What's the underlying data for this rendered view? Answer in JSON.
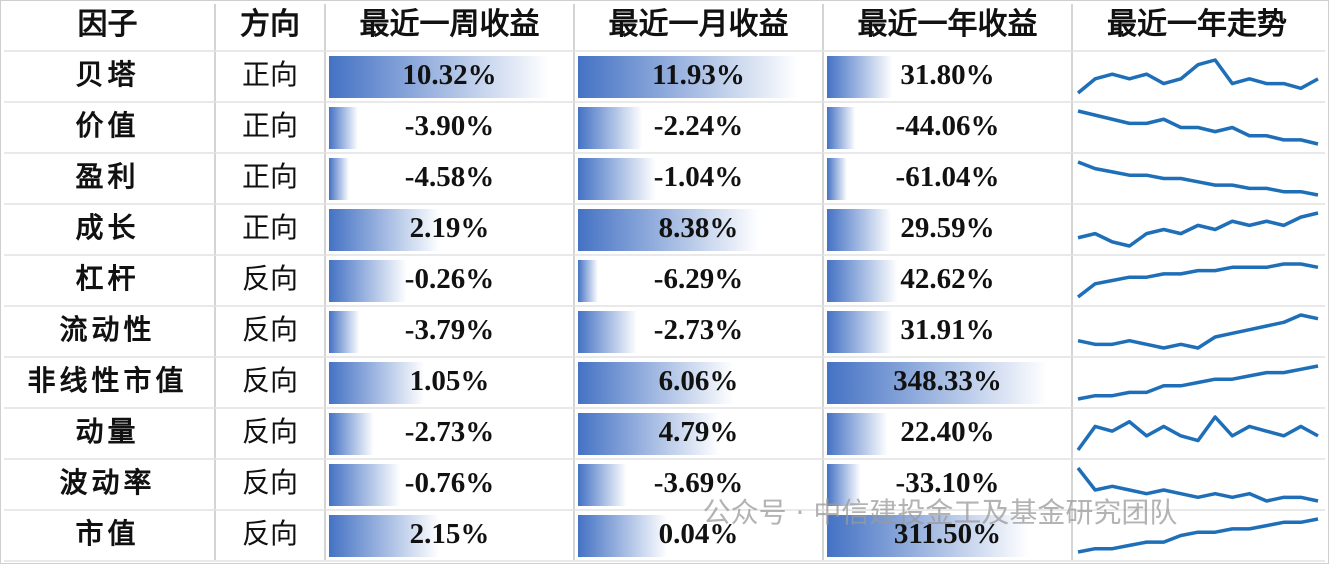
{
  "table": {
    "headers": [
      "因子",
      "方向",
      "最近一周收益",
      "最近一月收益",
      "最近一年收益",
      "最近一年走势"
    ],
    "rows": [
      {
        "factor": "贝塔",
        "direction": "正向",
        "week": {
          "value": 10.32,
          "label": "10.32%"
        },
        "month": {
          "value": 11.93,
          "label": "11.93%"
        },
        "year": {
          "value": 31.8,
          "label": "31.80%"
        },
        "trend": [
          3,
          6,
          7,
          6,
          7,
          5,
          6,
          9,
          10,
          5,
          6,
          5,
          5,
          4,
          6
        ]
      },
      {
        "factor": "价值",
        "direction": "正向",
        "week": {
          "value": -3.9,
          "label": "-3.90%"
        },
        "month": {
          "value": -2.24,
          "label": "-2.24%"
        },
        "year": {
          "value": -44.06,
          "label": "-44.06%"
        },
        "trend": [
          9,
          8,
          7,
          6,
          6,
          7,
          5,
          5,
          4,
          5,
          3,
          3,
          2,
          2,
          1
        ]
      },
      {
        "factor": "盈利",
        "direction": "正向",
        "week": {
          "value": -4.58,
          "label": "-4.58%"
        },
        "month": {
          "value": -1.04,
          "label": "-1.04%"
        },
        "year": {
          "value": -61.04,
          "label": "-61.04%"
        },
        "trend": [
          10,
          8,
          7,
          6,
          6,
          5,
          5,
          4,
          3,
          3,
          2,
          2,
          1,
          1,
          0
        ]
      },
      {
        "factor": "成长",
        "direction": "正向",
        "week": {
          "value": 2.19,
          "label": "2.19%"
        },
        "month": {
          "value": 8.38,
          "label": "8.38%"
        },
        "year": {
          "value": 29.59,
          "label": "29.59%"
        },
        "trend": [
          4,
          5,
          3,
          2,
          5,
          6,
          5,
          7,
          6,
          8,
          7,
          8,
          7,
          9,
          10
        ]
      },
      {
        "factor": "杠杆",
        "direction": "反向",
        "week": {
          "value": -0.26,
          "label": "-0.26%"
        },
        "month": {
          "value": -6.29,
          "label": "-6.29%"
        },
        "year": {
          "value": 42.62,
          "label": "42.62%"
        },
        "trend": [
          0,
          4,
          5,
          6,
          6,
          7,
          7,
          8,
          8,
          9,
          9,
          9,
          10,
          10,
          9
        ]
      },
      {
        "factor": "流动性",
        "direction": "反向",
        "week": {
          "value": -3.79,
          "label": "-3.79%"
        },
        "month": {
          "value": -2.73,
          "label": "-2.73%"
        },
        "year": {
          "value": 31.91,
          "label": "31.91%"
        },
        "trend": [
          3,
          2,
          2,
          3,
          2,
          1,
          2,
          1,
          4,
          5,
          6,
          7,
          8,
          10,
          9
        ]
      },
      {
        "factor": "非线性市值",
        "direction": "反向",
        "week": {
          "value": 1.05,
          "label": "1.05%"
        },
        "month": {
          "value": 6.06,
          "label": "6.06%"
        },
        "year": {
          "value": 348.33,
          "label": "348.33%"
        },
        "trend": [
          0,
          1,
          1,
          2,
          2,
          4,
          4,
          5,
          6,
          6,
          7,
          8,
          8,
          9,
          10
        ]
      },
      {
        "factor": "动量",
        "direction": "反向",
        "week": {
          "value": -2.73,
          "label": "-2.73%"
        },
        "month": {
          "value": 4.79,
          "label": "4.79%"
        },
        "year": {
          "value": 22.4,
          "label": "22.40%"
        },
        "trend": [
          3,
          8,
          7,
          9,
          6,
          8,
          6,
          5,
          10,
          6,
          8,
          7,
          6,
          8,
          6
        ]
      },
      {
        "factor": "波动率",
        "direction": "反向",
        "week": {
          "value": -0.76,
          "label": "-0.76%"
        },
        "month": {
          "value": -3.69,
          "label": "-3.69%"
        },
        "year": {
          "value": -33.1,
          "label": "-33.10%"
        },
        "trend": [
          10,
          4,
          5,
          4,
          3,
          4,
          3,
          2,
          3,
          2,
          3,
          1,
          2,
          2,
          1
        ]
      },
      {
        "factor": "市值",
        "direction": "反向",
        "week": {
          "value": 2.15,
          "label": "2.15%"
        },
        "month": {
          "value": 0.04,
          "label": "0.04%"
        },
        "year": {
          "value": 311.5,
          "label": "311.50%"
        },
        "trend": [
          0,
          1,
          1,
          2,
          3,
          3,
          5,
          6,
          6,
          7,
          7,
          8,
          9,
          9,
          10
        ]
      }
    ]
  },
  "watermark": "公众号 · 中信建投金工及基金研究团队"
}
